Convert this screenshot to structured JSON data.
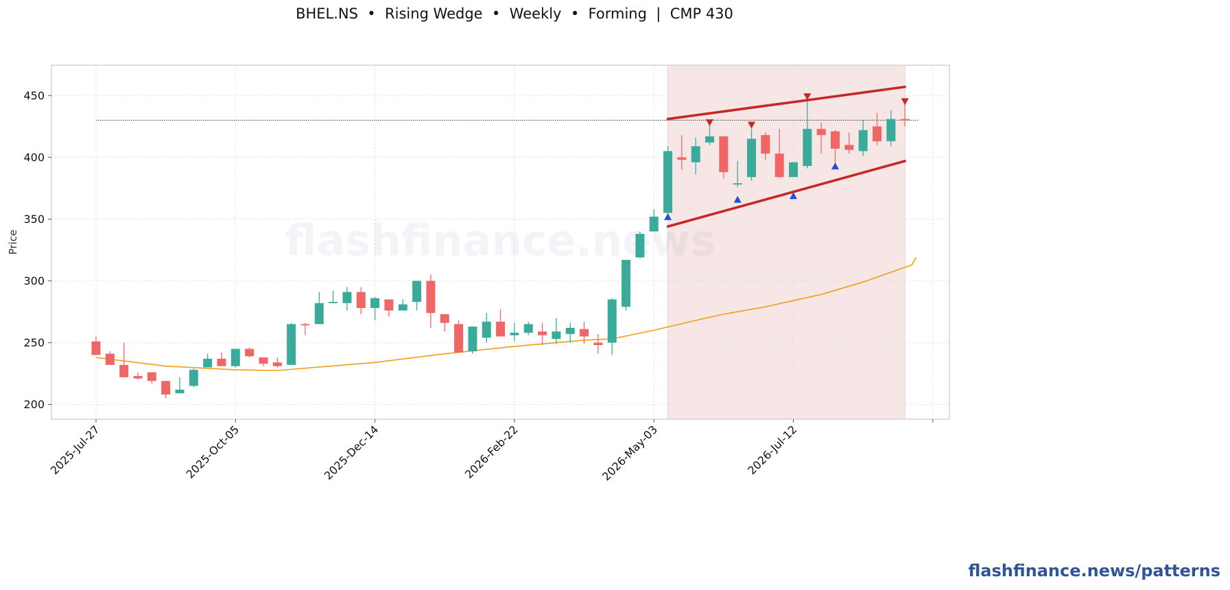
{
  "chart_data": {
    "type": "candlestick",
    "title": "BHEL.NS  •  Rising Wedge  •  Weekly  •  Forming  |  CMP 430",
    "ylabel": "Price",
    "xlabel": "",
    "ylim": [
      188,
      475
    ],
    "yticks": [
      200,
      250,
      300,
      350,
      400,
      450
    ],
    "xtick_labels": [
      "2025-Jul-27",
      "2025-Oct-05",
      "2025-Dec-14",
      "2026-Feb-22",
      "2026-May-03",
      "2026-Jul-12"
    ],
    "xtick_weeks": [
      0,
      10,
      20,
      30,
      40,
      50,
      60
    ],
    "grid": true,
    "watermark": "flashfinance.news",
    "cmp_line": 430,
    "pattern_zone_weeks": [
      41,
      58
    ],
    "colors": {
      "up": "#3aab9a",
      "down": "#f06565",
      "ma": "#f39c12",
      "wedge": "#c62828",
      "zone": "#f7e6e6",
      "peak_marker": "#c62828",
      "trough_marker": "#2250d0"
    },
    "candles": [
      {
        "o": 251,
        "h": 255,
        "l": 240,
        "c": 240
      },
      {
        "o": 241,
        "h": 243,
        "l": 232,
        "c": 232
      },
      {
        "o": 232,
        "h": 250,
        "l": 222,
        "c": 222
      },
      {
        "o": 223,
        "h": 226,
        "l": 220,
        "c": 221
      },
      {
        "o": 226,
        "h": 226,
        "l": 217,
        "c": 219
      },
      {
        "o": 219,
        "h": 219,
        "l": 205,
        "c": 208
      },
      {
        "o": 209,
        "h": 222,
        "l": 209,
        "c": 212
      },
      {
        "o": 215,
        "h": 229,
        "l": 214,
        "c": 228
      },
      {
        "o": 230,
        "h": 241,
        "l": 230,
        "c": 237
      },
      {
        "o": 237,
        "h": 242,
        "l": 231,
        "c": 231
      },
      {
        "o": 231,
        "h": 245,
        "l": 230,
        "c": 245
      },
      {
        "o": 245,
        "h": 246,
        "l": 238,
        "c": 239
      },
      {
        "o": 238,
        "h": 238,
        "l": 231,
        "c": 233
      },
      {
        "o": 234,
        "h": 238,
        "l": 230,
        "c": 231
      },
      {
        "o": 232,
        "h": 266,
        "l": 232,
        "c": 265
      },
      {
        "o": 265,
        "h": 266,
        "l": 256,
        "c": 264
      },
      {
        "o": 265,
        "h": 291,
        "l": 265,
        "c": 282
      },
      {
        "o": 282,
        "h": 292,
        "l": 282,
        "c": 283
      },
      {
        "o": 282,
        "h": 295,
        "l": 276,
        "c": 291
      },
      {
        "o": 291,
        "h": 295,
        "l": 273,
        "c": 278
      },
      {
        "o": 278,
        "h": 287,
        "l": 268,
        "c": 286
      },
      {
        "o": 285,
        "h": 285,
        "l": 271,
        "c": 276
      },
      {
        "o": 276,
        "h": 285,
        "l": 276,
        "c": 281
      },
      {
        "o": 283,
        "h": 300,
        "l": 276,
        "c": 300
      },
      {
        "o": 300,
        "h": 305,
        "l": 262,
        "c": 274
      },
      {
        "o": 273,
        "h": 273,
        "l": 259,
        "c": 266
      },
      {
        "o": 265,
        "h": 268,
        "l": 242,
        "c": 242
      },
      {
        "o": 243,
        "h": 263,
        "l": 241,
        "c": 263
      },
      {
        "o": 254,
        "h": 274,
        "l": 250,
        "c": 267
      },
      {
        "o": 267,
        "h": 277,
        "l": 255,
        "c": 255
      },
      {
        "o": 256,
        "h": 266,
        "l": 251,
        "c": 258
      },
      {
        "o": 258,
        "h": 267,
        "l": 256,
        "c": 265
      },
      {
        "o": 259,
        "h": 266,
        "l": 248,
        "c": 256
      },
      {
        "o": 253,
        "h": 270,
        "l": 249,
        "c": 259
      },
      {
        "o": 257,
        "h": 266,
        "l": 250,
        "c": 262
      },
      {
        "o": 261,
        "h": 267,
        "l": 249,
        "c": 255
      },
      {
        "o": 250,
        "h": 257,
        "l": 241,
        "c": 248
      },
      {
        "o": 250,
        "h": 286,
        "l": 240,
        "c": 285
      },
      {
        "o": 279,
        "h": 317,
        "l": 276,
        "c": 317
      },
      {
        "o": 319,
        "h": 340,
        "l": 318,
        "c": 338
      },
      {
        "o": 340,
        "h": 358,
        "l": 340,
        "c": 352
      },
      {
        "o": 355,
        "h": 409,
        "l": 354,
        "c": 405
      },
      {
        "o": 400,
        "h": 418,
        "l": 390,
        "c": 398
      },
      {
        "o": 396,
        "h": 416,
        "l": 386,
        "c": 409
      },
      {
        "o": 412,
        "h": 426,
        "l": 410,
        "c": 417
      },
      {
        "o": 417,
        "h": 417,
        "l": 383,
        "c": 388
      },
      {
        "o": 378,
        "h": 397,
        "l": 376,
        "c": 379
      },
      {
        "o": 384,
        "h": 423,
        "l": 381,
        "c": 415
      },
      {
        "o": 418,
        "h": 420,
        "l": 398,
        "c": 403
      },
      {
        "o": 403,
        "h": 423,
        "l": 383,
        "c": 384
      },
      {
        "o": 384,
        "h": 396,
        "l": 384,
        "c": 396
      },
      {
        "o": 393,
        "h": 448,
        "l": 391,
        "c": 423
      },
      {
        "o": 423,
        "h": 428,
        "l": 403,
        "c": 418
      },
      {
        "o": 421,
        "h": 422,
        "l": 394,
        "c": 407
      },
      {
        "o": 410,
        "h": 420,
        "l": 403,
        "c": 406
      },
      {
        "o": 405,
        "h": 430,
        "l": 401,
        "c": 422
      },
      {
        "o": 425,
        "h": 436,
        "l": 410,
        "c": 413
      },
      {
        "o": 413,
        "h": 438,
        "l": 409,
        "c": 431
      },
      {
        "o": 431,
        "h": 444,
        "l": 425,
        "c": 430
      }
    ],
    "moving_average": [
      [
        0,
        238
      ],
      [
        5,
        231
      ],
      [
        10,
        228
      ],
      [
        13,
        227.5
      ],
      [
        20,
        234
      ],
      [
        25,
        241
      ],
      [
        30,
        247
      ],
      [
        35,
        252
      ],
      [
        37,
        253
      ],
      [
        40,
        260
      ],
      [
        43,
        268
      ],
      [
        45,
        273
      ],
      [
        48,
        279
      ],
      [
        50,
        284
      ],
      [
        52,
        289
      ],
      [
        55,
        299
      ],
      [
        58,
        311
      ],
      [
        58.5,
        313
      ],
      [
        58.8,
        319
      ]
    ],
    "wedge_upper": [
      [
        41,
        431
      ],
      [
        58,
        457
      ]
    ],
    "wedge_lower": [
      [
        41,
        344
      ],
      [
        58,
        397
      ]
    ],
    "peak_markers": [
      [
        44,
        428
      ],
      [
        47,
        426
      ],
      [
        51,
        449
      ],
      [
        58,
        445
      ]
    ],
    "trough_markers": [
      [
        41,
        352
      ],
      [
        46,
        366
      ],
      [
        50,
        369
      ],
      [
        53,
        393
      ]
    ]
  },
  "footer": "flashfinance.news/patterns"
}
